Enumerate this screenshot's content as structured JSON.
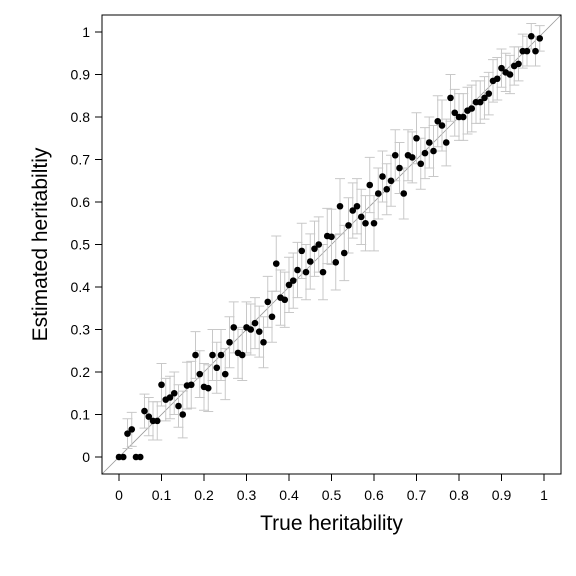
{
  "chart_data": {
    "type": "scatter",
    "title": "",
    "xlabel": "True heritability",
    "ylabel": "Estimated heritabiltiy",
    "xlim": [
      -0.04,
      1.04
    ],
    "ylim": [
      -0.04,
      1.04
    ],
    "xticks": [
      0,
      0.1,
      0.2,
      0.3,
      0.4,
      0.5,
      0.6,
      0.7,
      0.8,
      0.9,
      1
    ],
    "yticks": [
      0,
      0.1,
      0.2,
      0.3,
      0.4,
      0.5,
      0.6,
      0.7,
      0.8,
      0.9,
      1
    ],
    "xtick_labels": [
      "0",
      "0.1",
      "0.2",
      "0.3",
      "0.4",
      "0.5",
      "0.6",
      "0.7",
      "0.8",
      "0.9",
      "1"
    ],
    "ytick_labels": [
      "0",
      "0.1",
      "0.2",
      "0.3",
      "0.4",
      "0.5",
      "0.6",
      "0.7",
      "0.8",
      "0.9",
      "1"
    ],
    "reference_line": "y = x",
    "grid": false,
    "error_bars": true,
    "colors": {
      "points": "#000000",
      "error_bars": "#c8c8c8",
      "reference_line": "#9a9a9a",
      "frame": "#000000"
    },
    "points": [
      {
        "x": 0.0,
        "y": 0.0,
        "err": 0.0
      },
      {
        "x": 0.01,
        "y": 0.0,
        "err": 0.0
      },
      {
        "x": 0.02,
        "y": 0.055,
        "err": 0.035
      },
      {
        "x": 0.03,
        "y": 0.065,
        "err": 0.04
      },
      {
        "x": 0.04,
        "y": 0.0,
        "err": 0.0
      },
      {
        "x": 0.05,
        "y": 0.0,
        "err": 0.0
      },
      {
        "x": 0.06,
        "y": 0.108,
        "err": 0.04
      },
      {
        "x": 0.07,
        "y": 0.095,
        "err": 0.045
      },
      {
        "x": 0.08,
        "y": 0.085,
        "err": 0.045
      },
      {
        "x": 0.09,
        "y": 0.085,
        "err": 0.045
      },
      {
        "x": 0.1,
        "y": 0.17,
        "err": 0.05
      },
      {
        "x": 0.11,
        "y": 0.135,
        "err": 0.05
      },
      {
        "x": 0.12,
        "y": 0.14,
        "err": 0.05
      },
      {
        "x": 0.13,
        "y": 0.15,
        "err": 0.05
      },
      {
        "x": 0.14,
        "y": 0.12,
        "err": 0.05
      },
      {
        "x": 0.15,
        "y": 0.1,
        "err": 0.055
      },
      {
        "x": 0.16,
        "y": 0.168,
        "err": 0.055
      },
      {
        "x": 0.17,
        "y": 0.17,
        "err": 0.055
      },
      {
        "x": 0.18,
        "y": 0.24,
        "err": 0.055
      },
      {
        "x": 0.19,
        "y": 0.195,
        "err": 0.055
      },
      {
        "x": 0.2,
        "y": 0.165,
        "err": 0.055
      },
      {
        "x": 0.21,
        "y": 0.162,
        "err": 0.055
      },
      {
        "x": 0.22,
        "y": 0.24,
        "err": 0.06
      },
      {
        "x": 0.23,
        "y": 0.21,
        "err": 0.06
      },
      {
        "x": 0.24,
        "y": 0.24,
        "err": 0.06
      },
      {
        "x": 0.25,
        "y": 0.195,
        "err": 0.06
      },
      {
        "x": 0.26,
        "y": 0.27,
        "err": 0.06
      },
      {
        "x": 0.27,
        "y": 0.305,
        "err": 0.06
      },
      {
        "x": 0.28,
        "y": 0.245,
        "err": 0.06
      },
      {
        "x": 0.29,
        "y": 0.24,
        "err": 0.06
      },
      {
        "x": 0.3,
        "y": 0.305,
        "err": 0.06
      },
      {
        "x": 0.31,
        "y": 0.3,
        "err": 0.06
      },
      {
        "x": 0.32,
        "y": 0.315,
        "err": 0.06
      },
      {
        "x": 0.33,
        "y": 0.295,
        "err": 0.06
      },
      {
        "x": 0.34,
        "y": 0.27,
        "err": 0.06
      },
      {
        "x": 0.35,
        "y": 0.365,
        "err": 0.06
      },
      {
        "x": 0.36,
        "y": 0.33,
        "err": 0.06
      },
      {
        "x": 0.37,
        "y": 0.455,
        "err": 0.065
      },
      {
        "x": 0.38,
        "y": 0.375,
        "err": 0.065
      },
      {
        "x": 0.39,
        "y": 0.37,
        "err": 0.065
      },
      {
        "x": 0.4,
        "y": 0.405,
        "err": 0.065
      },
      {
        "x": 0.41,
        "y": 0.415,
        "err": 0.065
      },
      {
        "x": 0.42,
        "y": 0.44,
        "err": 0.065
      },
      {
        "x": 0.43,
        "y": 0.485,
        "err": 0.065
      },
      {
        "x": 0.44,
        "y": 0.435,
        "err": 0.065
      },
      {
        "x": 0.45,
        "y": 0.46,
        "err": 0.065
      },
      {
        "x": 0.46,
        "y": 0.49,
        "err": 0.065
      },
      {
        "x": 0.47,
        "y": 0.5,
        "err": 0.065
      },
      {
        "x": 0.48,
        "y": 0.435,
        "err": 0.065
      },
      {
        "x": 0.49,
        "y": 0.52,
        "err": 0.065
      },
      {
        "x": 0.5,
        "y": 0.518,
        "err": 0.065
      },
      {
        "x": 0.51,
        "y": 0.458,
        "err": 0.065
      },
      {
        "x": 0.52,
        "y": 0.59,
        "err": 0.065
      },
      {
        "x": 0.53,
        "y": 0.48,
        "err": 0.065
      },
      {
        "x": 0.54,
        "y": 0.545,
        "err": 0.065
      },
      {
        "x": 0.55,
        "y": 0.58,
        "err": 0.065
      },
      {
        "x": 0.56,
        "y": 0.59,
        "err": 0.065
      },
      {
        "x": 0.57,
        "y": 0.565,
        "err": 0.065
      },
      {
        "x": 0.58,
        "y": 0.55,
        "err": 0.065
      },
      {
        "x": 0.59,
        "y": 0.64,
        "err": 0.065
      },
      {
        "x": 0.6,
        "y": 0.55,
        "err": 0.065
      },
      {
        "x": 0.61,
        "y": 0.62,
        "err": 0.06
      },
      {
        "x": 0.62,
        "y": 0.66,
        "err": 0.06
      },
      {
        "x": 0.63,
        "y": 0.63,
        "err": 0.06
      },
      {
        "x": 0.64,
        "y": 0.65,
        "err": 0.06
      },
      {
        "x": 0.65,
        "y": 0.71,
        "err": 0.06
      },
      {
        "x": 0.66,
        "y": 0.68,
        "err": 0.06
      },
      {
        "x": 0.67,
        "y": 0.62,
        "err": 0.06
      },
      {
        "x": 0.68,
        "y": 0.71,
        "err": 0.06
      },
      {
        "x": 0.69,
        "y": 0.705,
        "err": 0.06
      },
      {
        "x": 0.7,
        "y": 0.75,
        "err": 0.06
      },
      {
        "x": 0.71,
        "y": 0.69,
        "err": 0.06
      },
      {
        "x": 0.72,
        "y": 0.715,
        "err": 0.06
      },
      {
        "x": 0.73,
        "y": 0.74,
        "err": 0.06
      },
      {
        "x": 0.74,
        "y": 0.72,
        "err": 0.06
      },
      {
        "x": 0.75,
        "y": 0.79,
        "err": 0.06
      },
      {
        "x": 0.76,
        "y": 0.78,
        "err": 0.06
      },
      {
        "x": 0.77,
        "y": 0.74,
        "err": 0.055
      },
      {
        "x": 0.78,
        "y": 0.845,
        "err": 0.055
      },
      {
        "x": 0.79,
        "y": 0.81,
        "err": 0.055
      },
      {
        "x": 0.8,
        "y": 0.8,
        "err": 0.055
      },
      {
        "x": 0.81,
        "y": 0.8,
        "err": 0.055
      },
      {
        "x": 0.82,
        "y": 0.815,
        "err": 0.055
      },
      {
        "x": 0.83,
        "y": 0.82,
        "err": 0.055
      },
      {
        "x": 0.84,
        "y": 0.835,
        "err": 0.05
      },
      {
        "x": 0.85,
        "y": 0.835,
        "err": 0.05
      },
      {
        "x": 0.86,
        "y": 0.845,
        "err": 0.05
      },
      {
        "x": 0.87,
        "y": 0.855,
        "err": 0.05
      },
      {
        "x": 0.88,
        "y": 0.885,
        "err": 0.05
      },
      {
        "x": 0.89,
        "y": 0.89,
        "err": 0.05
      },
      {
        "x": 0.9,
        "y": 0.915,
        "err": 0.045
      },
      {
        "x": 0.91,
        "y": 0.905,
        "err": 0.045
      },
      {
        "x": 0.92,
        "y": 0.9,
        "err": 0.045
      },
      {
        "x": 0.93,
        "y": 0.92,
        "err": 0.045
      },
      {
        "x": 0.94,
        "y": 0.925,
        "err": 0.04
      },
      {
        "x": 0.95,
        "y": 0.955,
        "err": 0.04
      },
      {
        "x": 0.96,
        "y": 0.955,
        "err": 0.035
      },
      {
        "x": 0.97,
        "y": 0.99,
        "err": 0.03
      },
      {
        "x": 0.98,
        "y": 0.955,
        "err": 0.035
      },
      {
        "x": 0.99,
        "y": 0.985,
        "err": 0.03
      }
    ]
  }
}
